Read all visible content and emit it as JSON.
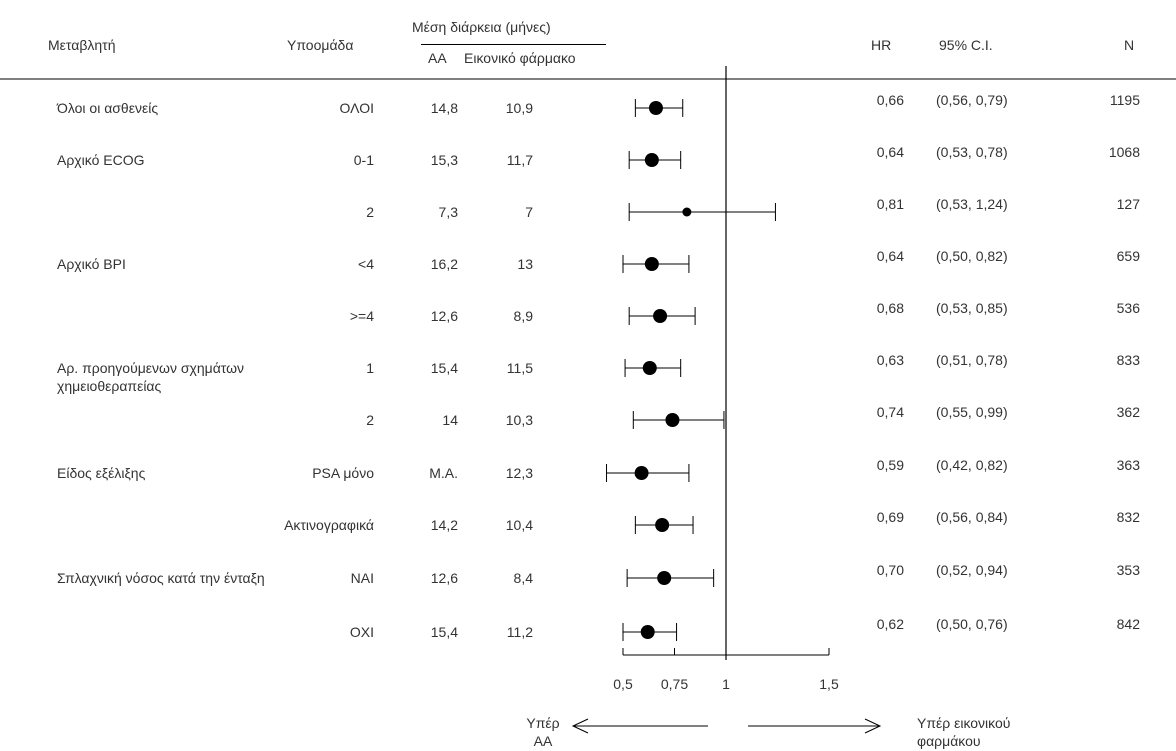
{
  "header": {
    "variable": "Μεταβλητή",
    "subgroup": "Υποομάδα",
    "median_duration": "Μέση διάρκεια (μήνες)",
    "aa": "ΑΑ",
    "placebo": "Εικονικό φάρμακο",
    "hr": "HR",
    "ci": "95% C.I.",
    "n": "N"
  },
  "footer": {
    "favors_aa_line1": "Υπέρ",
    "favors_aa_line2": "ΑΑ",
    "favors_placebo_line1": "Υπέρ εικονικού",
    "favors_placebo_line2": "φαρμάκου"
  },
  "chart_data": {
    "type": "forest",
    "xlim": [
      0.5,
      1.5
    ],
    "reference_line": 1,
    "x_ticks": [
      "0,5",
      "0,75",
      "1",
      "1,5"
    ],
    "x_tick_values": [
      0.5,
      0.75,
      1,
      1.5
    ],
    "rows": [
      {
        "variable": "Όλοι οι ασθενείς",
        "subgroup": "ΟΛΟΙ",
        "aa": "14,8",
        "placebo": "10,9",
        "hr": 0.66,
        "lo": 0.56,
        "hi": 0.79,
        "hr_text": "0,66",
        "ci_text": "(0,56,  0,79)",
        "n": "1195"
      },
      {
        "variable": "Αρχικό ECOG",
        "subgroup": "0-1",
        "aa": "15,3",
        "placebo": "11,7",
        "hr": 0.64,
        "lo": 0.53,
        "hi": 0.78,
        "hr_text": "0,64",
        "ci_text": "(0,53,  0,78)",
        "n": "1068"
      },
      {
        "variable": "",
        "subgroup": "2",
        "aa": "7,3",
        "placebo": "7",
        "hr": 0.81,
        "lo": 0.53,
        "hi": 1.24,
        "hr_text": "0,81",
        "ci_text": "(0,53,  1,24)",
        "n": "127"
      },
      {
        "variable": "Αρχικό BPI",
        "subgroup": "<4",
        "aa": "16,2",
        "placebo": "13",
        "hr": 0.64,
        "lo": 0.5,
        "hi": 0.82,
        "hr_text": "0,64",
        "ci_text": "(0,50,  0,82)",
        "n": "659"
      },
      {
        "variable": "",
        "subgroup": ">=4",
        "aa": "12,6",
        "placebo": "8,9",
        "hr": 0.68,
        "lo": 0.53,
        "hi": 0.85,
        "hr_text": "0,68",
        "ci_text": "(0,53,  0,85)",
        "n": "536"
      },
      {
        "variable": "Αρ. προηγούμενων σχημάτων",
        "variable2": "χημειοθεραπείας",
        "subgroup": "1",
        "aa": "15,4",
        "placebo": "11,5",
        "hr": 0.63,
        "lo": 0.51,
        "hi": 0.78,
        "hr_text": "0,63",
        "ci_text": "(0,51,  0,78)",
        "n": "833"
      },
      {
        "variable": "",
        "subgroup": "2",
        "aa": "14",
        "placebo": "10,3",
        "hr": 0.74,
        "lo": 0.55,
        "hi": 0.99,
        "hr_text": "0,74",
        "ci_text": "(0,55,  0,99)",
        "n": "362"
      },
      {
        "variable": "Είδος εξέλιξης",
        "subgroup": "PSA μόνο",
        "aa": "Μ.Α.",
        "placebo": "12,3",
        "hr": 0.59,
        "lo": 0.42,
        "hi": 0.82,
        "hr_text": "0,59",
        "ci_text": "(0,42,  0,82)",
        "n": "363"
      },
      {
        "variable": "",
        "subgroup": "Ακτινογραφικά",
        "aa": "14,2",
        "placebo": "10,4",
        "hr": 0.69,
        "lo": 0.56,
        "hi": 0.84,
        "hr_text": "0,69",
        "ci_text": "(0,56,  0,84)",
        "n": "832"
      },
      {
        "variable": "Σπλαχνική νόσος κατά την ένταξη",
        "subgroup": "ΝΑΙ",
        "aa": "12,6",
        "placebo": "8,4",
        "hr": 0.7,
        "lo": 0.52,
        "hi": 0.94,
        "hr_text": "0,70",
        "ci_text": "(0,52,  0,94)",
        "n": "353"
      },
      {
        "variable": "",
        "subgroup": "ΟΧΙ",
        "aa": "15,4",
        "placebo": "11,2",
        "hr": 0.62,
        "lo": 0.5,
        "hi": 0.76,
        "hr_text": "0,62",
        "ci_text": "(0,50,  0,76)",
        "n": "842"
      }
    ]
  }
}
